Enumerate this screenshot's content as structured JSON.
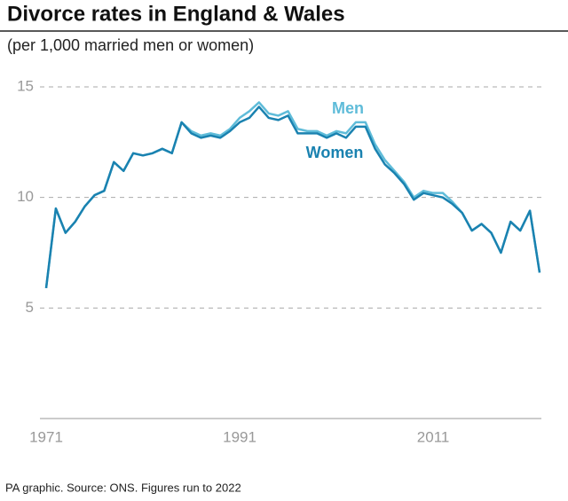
{
  "chart_data": {
    "type": "line",
    "title": "Divorce rates in England & Wales",
    "subtitle": "(per 1,000 married men or women)",
    "source": "PA graphic. Source: ONS. Figures run to 2022",
    "x": [
      1971,
      1972,
      1973,
      1974,
      1975,
      1976,
      1977,
      1978,
      1979,
      1980,
      1981,
      1982,
      1983,
      1984,
      1985,
      1986,
      1987,
      1988,
      1989,
      1990,
      1991,
      1992,
      1993,
      1994,
      1995,
      1996,
      1997,
      1998,
      1999,
      2000,
      2001,
      2002,
      2003,
      2004,
      2005,
      2006,
      2007,
      2008,
      2009,
      2010,
      2011,
      2012,
      2013,
      2014,
      2015,
      2016,
      2017,
      2018,
      2019,
      2020,
      2021,
      2022
    ],
    "xlim": [
      1971,
      2022
    ],
    "xticks": [
      1971,
      1991,
      2011
    ],
    "ylim": [
      0,
      15
    ],
    "yticks": [
      5,
      10,
      15
    ],
    "grid": true,
    "series": [
      {
        "name": "Men",
        "color": "#5fbcd9",
        "values": [
          5.9,
          9.5,
          8.4,
          8.9,
          9.6,
          10.1,
          10.3,
          11.6,
          11.2,
          12.0,
          11.9,
          12.0,
          12.2,
          12.0,
          13.4,
          13.0,
          12.8,
          12.9,
          12.8,
          13.1,
          13.6,
          13.9,
          14.3,
          13.8,
          13.7,
          13.9,
          13.1,
          13.0,
          13.0,
          12.8,
          13.0,
          12.9,
          13.4,
          13.4,
          12.4,
          11.7,
          11.2,
          10.7,
          10.0,
          10.3,
          10.2,
          10.2,
          9.8,
          9.3,
          8.5,
          8.8,
          8.4,
          7.5,
          8.9,
          8.5,
          9.4,
          6.6
        ]
      },
      {
        "name": "Women",
        "color": "#1a82b0",
        "values": [
          5.9,
          9.5,
          8.4,
          8.9,
          9.6,
          10.1,
          10.3,
          11.6,
          11.2,
          12.0,
          11.9,
          12.0,
          12.2,
          12.0,
          13.4,
          12.9,
          12.7,
          12.8,
          12.7,
          13.0,
          13.4,
          13.6,
          14.1,
          13.6,
          13.5,
          13.7,
          12.9,
          12.9,
          12.9,
          12.7,
          12.9,
          12.7,
          13.2,
          13.2,
          12.2,
          11.5,
          11.1,
          10.6,
          9.9,
          10.2,
          10.1,
          10.0,
          9.7,
          9.3,
          8.5,
          8.8,
          8.4,
          7.5,
          8.9,
          8.5,
          9.4,
          6.6
        ]
      }
    ]
  }
}
